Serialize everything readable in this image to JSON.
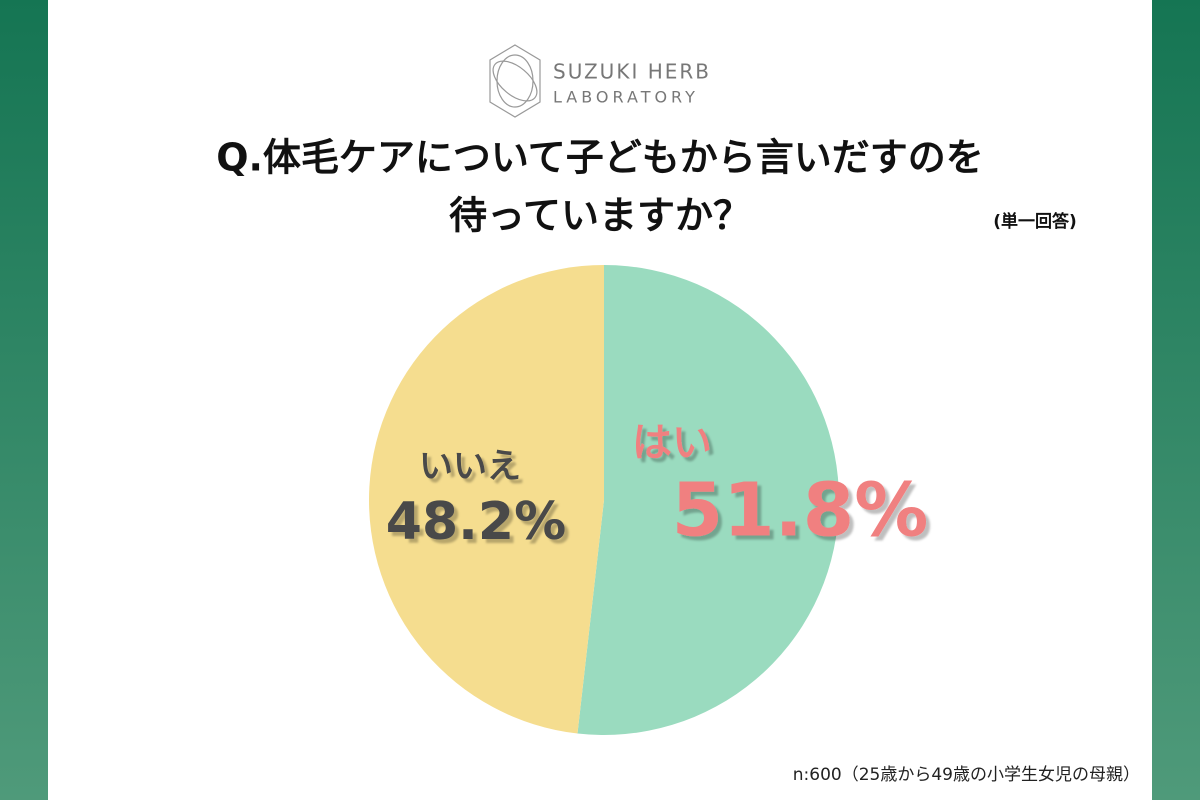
{
  "logo": {
    "line1": "SUZUKI HERB",
    "line2": "LABORATORY"
  },
  "chart_data": {
    "type": "pie",
    "title": [
      "Q.体毛ケアについて子どもから言いだすのを",
      "待っていますか？"
    ],
    "subtitle": "(単一回答)",
    "categories": [
      "はい",
      "いいえ"
    ],
    "values": [
      51.8,
      48.2
    ],
    "value_labels": [
      "51.8%",
      "48.2%"
    ],
    "colors": [
      "#9adbbf",
      "#f5dd8f"
    ],
    "label_colors": [
      "#f08080",
      "#4a4a4a"
    ],
    "note": "n:600（25歳から49歳の小学生女児の母親）"
  }
}
